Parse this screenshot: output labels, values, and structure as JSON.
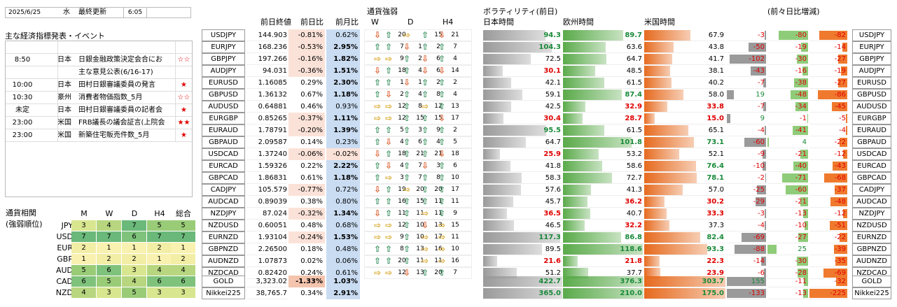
{
  "header": {
    "date": "2025/6/25",
    "weekday": "水",
    "update_label": "最終更新",
    "time": "6:05"
  },
  "events": {
    "title": "主な経済指標発表・イベント",
    "rows": [
      {
        "time": "",
        "ccy": "",
        "text": "",
        "stars": ""
      },
      {
        "time": "8:50",
        "ccy": "日本",
        "text": "日銀金融政策決定会合にお",
        "stars": "☆☆"
      },
      {
        "time": "",
        "ccy": "",
        "text": "主な意見公表(6/16-17)",
        "stars": ""
      },
      {
        "time": "10:00",
        "ccy": "日本",
        "text": "田村日銀審議委員の発言",
        "stars": "★"
      },
      {
        "time": "10:30",
        "ccy": "豪州",
        "text": "消費者物価指数_5月",
        "stars": "☆☆"
      },
      {
        "time": "未定",
        "ccy": "日本",
        "text": "田村日銀審議委員の記者会",
        "stars": "★"
      },
      {
        "time": "23:00",
        "ccy": "米国",
        "text": "FRB議長の議会証言(上院会",
        "stars": "★★"
      },
      {
        "time": "23:00",
        "ccy": "米国",
        "text": "新築住宅販売件数_5月",
        "stars": "★"
      }
    ]
  },
  "correlation": {
    "title1": "通貨相関",
    "title2": "(強弱順位)",
    "cols": [
      "M",
      "W",
      "D",
      "H4",
      "総合"
    ],
    "rows": [
      {
        "ccy": "JPY",
        "vals": [
          3,
          4,
          7,
          5,
          5
        ]
      },
      {
        "ccy": "USD",
        "vals": [
          7,
          7,
          6,
          7,
          7
        ]
      },
      {
        "ccy": "EUR",
        "vals": [
          2,
          1,
          1,
          2,
          1
        ]
      },
      {
        "ccy": "GBP",
        "vals": [
          1,
          2,
          2,
          1,
          2
        ]
      },
      {
        "ccy": "AUD",
        "vals": [
          5,
          6,
          3,
          4,
          4
        ]
      },
      {
        "ccy": "CAD",
        "vals": [
          6,
          5,
          4,
          6,
          6
        ]
      },
      {
        "ccy": "NZD",
        "vals": [
          4,
          3,
          5,
          3,
          3
        ]
      }
    ]
  },
  "quotes": {
    "h_close": "前日終値",
    "h_dchg": "前日比",
    "h_mchg": "前月比",
    "rows": [
      {
        "pair": "USDJPY",
        "close": "144.903",
        "d": "-0.81%",
        "m": "0.62%"
      },
      {
        "pair": "EURJPY",
        "close": "168.236",
        "d": "-0.53%",
        "m": "2.95%"
      },
      {
        "pair": "GBPJPY",
        "close": "197.266",
        "d": "-0.16%",
        "m": "1.82%"
      },
      {
        "pair": "AUDJPY",
        "close": "94.031",
        "d": "-0.36%",
        "m": "1.51%"
      },
      {
        "pair": "EURUSD",
        "close": "1.16085",
        "d": "0.29%",
        "m": "2.30%"
      },
      {
        "pair": "GBPUSD",
        "close": "1.36132",
        "d": "0.67%",
        "m": "1.18%"
      },
      {
        "pair": "AUDUSD",
        "close": "0.64881",
        "d": "0.46%",
        "m": "0.93%"
      },
      {
        "pair": "EURGBP",
        "close": "0.85265",
        "d": "-0.37%",
        "m": "1.11%"
      },
      {
        "pair": "EURAUD",
        "close": "1.78791",
        "d": "-0.20%",
        "m": "1.39%"
      },
      {
        "pair": "GBPAUD",
        "close": "2.09587",
        "d": "0.14%",
        "m": "0.23%"
      },
      {
        "pair": "USDCAD",
        "close": "1.37240",
        "d": "-0.06%",
        "m": "-0.02%"
      },
      {
        "pair": "EURCAD",
        "close": "1.59326",
        "d": "0.22%",
        "m": "2.22%"
      },
      {
        "pair": "GBPCAD",
        "close": "1.86831",
        "d": "0.61%",
        "m": "1.18%"
      },
      {
        "pair": "CADJPY",
        "close": "105.579",
        "d": "-0.77%",
        "m": "0.72%"
      },
      {
        "pair": "AUDCAD",
        "close": "0.89039",
        "d": "0.38%",
        "m": "0.80%"
      },
      {
        "pair": "NZDJPY",
        "close": "87.024",
        "d": "-0.32%",
        "m": "1.34%"
      },
      {
        "pair": "NZDUSD",
        "close": "0.60051",
        "d": "0.48%",
        "m": "0.68%"
      },
      {
        "pair": "EURNZD",
        "close": "1.93104",
        "d": "-0.24%",
        "m": "1.53%"
      },
      {
        "pair": "GBPNZD",
        "close": "2.26500",
        "d": "0.18%",
        "m": "0.48%"
      },
      {
        "pair": "AUDNZD",
        "close": "1.07873",
        "d": "0.02%",
        "m": "0.06%"
      },
      {
        "pair": "NZDCAD",
        "close": "0.82420",
        "d": "0.24%",
        "m": "0.61%"
      }
    ],
    "extra": [
      {
        "pair": "GOLD",
        "close": "3,323.02",
        "d": "-1.33%",
        "m": "1.03%"
      },
      {
        "pair": "Nikkei225",
        "close": "38,765.7",
        "d": "0.34%",
        "m": "2.91%"
      }
    ]
  },
  "strength": {
    "title": "通貨強弱",
    "cols": [
      "W",
      "D",
      "H4"
    ],
    "rows": [
      [
        [
          "dn",
          ""
        ],
        [
          "up",
          "20"
        ],
        [
          "fl",
          ""
        ],
        [
          "up",
          "15"
        ],
        [
          "dn",
          "21"
        ]
      ],
      [
        [
          "up",
          ""
        ],
        [
          "up",
          "7"
        ],
        [
          "dn",
          "1"
        ],
        [
          "up",
          "2"
        ],
        [
          "up",
          "7"
        ]
      ],
      [
        [
          "fl",
          ""
        ],
        [
          "fl",
          "9"
        ],
        [
          "up",
          "2"
        ],
        [
          "dn",
          "6"
        ],
        [
          "up",
          "4"
        ]
      ],
      [
        [
          "dn",
          ""
        ],
        [
          "up",
          "18"
        ],
        [
          "up",
          "4"
        ],
        [
          "dn",
          "6"
        ],
        [
          "dn",
          "14"
        ]
      ],
      [
        [
          "up",
          ""
        ],
        [
          "up",
          "1"
        ],
        [
          "dn",
          "1"
        ],
        [
          "up",
          "2"
        ],
        [
          "up",
          "2"
        ]
      ],
      [
        [
          "up",
          ""
        ],
        [
          "dn",
          "2"
        ],
        [
          "up",
          "4"
        ],
        [
          "up",
          "8"
        ],
        [
          "up",
          "4"
        ]
      ],
      [
        [
          "fl",
          ""
        ],
        [
          "fl",
          "12"
        ],
        [
          "up",
          "8"
        ],
        [
          "fl",
          "12"
        ],
        [
          "up",
          "13"
        ]
      ],
      [
        [
          "fl",
          ""
        ],
        [
          "fl",
          "12"
        ],
        [
          "up",
          "15"
        ],
        [
          "up",
          "15"
        ],
        [
          "dn",
          "17"
        ]
      ],
      [
        [
          "up",
          ""
        ],
        [
          "up",
          "5"
        ],
        [
          "up",
          "3"
        ],
        [
          "up",
          "9"
        ],
        [
          "up",
          "2"
        ]
      ],
      [
        [
          "up",
          ""
        ],
        [
          "dn",
          "4"
        ],
        [
          "up",
          "6"
        ],
        [
          "up",
          "4"
        ],
        [
          "up",
          "5"
        ]
      ],
      [
        [
          "dn",
          ""
        ],
        [
          "up",
          "18"
        ],
        [
          "up",
          "21"
        ],
        [
          "up",
          "21"
        ],
        [
          "dn",
          "18"
        ]
      ],
      [
        [
          "up",
          ""
        ],
        [
          "dn",
          "4"
        ],
        [
          "up",
          "7"
        ],
        [
          "dn",
          "3"
        ],
        [
          "up",
          "6"
        ]
      ],
      [
        [
          "up",
          ""
        ],
        [
          "fl",
          "3"
        ],
        [
          "up",
          "7"
        ],
        [
          "up",
          "8"
        ],
        [
          "up",
          "10"
        ]
      ],
      [
        [
          "dn",
          ""
        ],
        [
          "up",
          "19"
        ],
        [
          "fl",
          "20"
        ],
        [
          "up",
          "20"
        ],
        [
          "up",
          "17"
        ]
      ],
      [
        [
          "up",
          ""
        ],
        [
          "up",
          "16"
        ],
        [
          "up",
          "15"
        ],
        [
          "up",
          "11"
        ],
        [
          "up",
          "11"
        ]
      ],
      [
        [
          "dn",
          ""
        ],
        [
          "up",
          "11"
        ],
        [
          "up",
          "11"
        ],
        [
          "fl",
          "11"
        ],
        [
          "up",
          "9"
        ]
      ],
      [
        [
          "fl",
          ""
        ],
        [
          "fl",
          "12"
        ],
        [
          "up",
          "10"
        ],
        [
          "dn",
          "13"
        ],
        [
          "fl",
          "15"
        ]
      ],
      [
        [
          "fl",
          ""
        ],
        [
          "fl",
          "9"
        ],
        [
          "up",
          "10"
        ],
        [
          "fl",
          "17"
        ],
        [
          "fl",
          "11"
        ]
      ],
      [
        [
          "up",
          ""
        ],
        [
          "up",
          "8"
        ],
        [
          "up",
          "13"
        ],
        [
          "fl",
          "16"
        ],
        [
          "fl",
          "10"
        ]
      ],
      [
        [
          "up",
          ""
        ],
        [
          "up",
          "20"
        ],
        [
          "up",
          "11"
        ],
        [
          "fl",
          "11"
        ],
        [
          "fl",
          "16"
        ]
      ],
      [
        [
          "fl",
          ""
        ],
        [
          "fl",
          "12"
        ],
        [
          "dn",
          "13"
        ],
        [
          "up",
          "20"
        ],
        [
          "up",
          "7"
        ]
      ]
    ]
  },
  "volatility": {
    "title": "ボラティリティ(前日)",
    "h_jp": "日本時間",
    "h_eu": "欧州時間",
    "h_us": "米国時間",
    "h_chg": "(前々日比増減)",
    "rows": [
      {
        "jp": "94.3",
        "eu": "89.7",
        "us": "67.9",
        "cj": "-3",
        "ce": "-80",
        "cu": "-82"
      },
      {
        "jp": "104.3",
        "eu": "63.6",
        "us": "43.8",
        "cj": "-50",
        "ce": "-19",
        "cu": "-14"
      },
      {
        "jp": "72.5",
        "eu": "64.7",
        "us": "41.7",
        "cj": "-102",
        "ce": "-30",
        "cu": "-27"
      },
      {
        "jp": "30.1",
        "eu": "48.5",
        "us": "38.1",
        "cj": "-43",
        "ce": "-16",
        "cu": "-19"
      },
      {
        "jp": "42.1",
        "eu": "61.5",
        "us": "40.2",
        "cj": "-7",
        "ce": "-38",
        "cu": "-27"
      },
      {
        "jp": "59.1",
        "eu": "87.4",
        "us": "58.0",
        "cj": "19",
        "ce": "-48",
        "cu": "-86"
      },
      {
        "jp": "42.5",
        "eu": "32.9",
        "us": "33.8",
        "cj": "-7",
        "ce": "-34",
        "cu": "-45"
      },
      {
        "jp": "30.4",
        "eu": "28.7",
        "us": "15.0",
        "cj": "9",
        "ce": "-1",
        "cu": "-5"
      },
      {
        "jp": "95.5",
        "eu": "61.5",
        "us": "65.1",
        "cj": "-4",
        "ce": "-41",
        "cu": "-4"
      },
      {
        "jp": "64.7",
        "eu": "101.8",
        "us": "73.1",
        "cj": "-60",
        "ce": "4",
        "cu": "-22"
      },
      {
        "jp": "25.9",
        "eu": "53.2",
        "us": "52.1",
        "cj": "-9",
        "ce": "-21",
        "cu": "-12"
      },
      {
        "jp": "41.8",
        "eu": "58.6",
        "us": "76.4",
        "cj": "-10",
        "ce": "-40",
        "cu": "-43"
      },
      {
        "jp": "58.3",
        "eu": "72.7",
        "us": "78.1",
        "cj": "-2",
        "ce": "-71",
        "cu": "-68"
      },
      {
        "jp": "57.6",
        "eu": "41.3",
        "us": "57.0",
        "cj": "-25",
        "ce": "-60",
        "cu": "-37"
      },
      {
        "jp": "45.7",
        "eu": "36.2",
        "us": "30.2",
        "cj": "-29",
        "ce": "-21",
        "cu": "-48"
      },
      {
        "jp": "36.5",
        "eu": "40.7",
        "us": "33.3",
        "cj": "-3",
        "ce": "-13",
        "cu": "-12"
      },
      {
        "jp": "46.5",
        "eu": "32.2",
        "us": "37.3",
        "cj": "-4",
        "ce": "-10",
        "cu": "-51"
      },
      {
        "jp": "117.3",
        "eu": "86.8",
        "us": "82.4",
        "cj": "-69",
        "ce": "-27",
        "cu": "-22"
      },
      {
        "jp": "89.5",
        "eu": "118.6",
        "us": "93.3",
        "cj": "-88",
        "ce": "25",
        "cu": "-39"
      },
      {
        "jp": "21.6",
        "eu": "21.8",
        "us": "22.3",
        "cj": "-14",
        "ce": "-30",
        "cu": "-35"
      },
      {
        "jp": "51.2",
        "eu": "37.7",
        "us": "23.9",
        "cj": "-6",
        "ce": "-28",
        "cu": "-69"
      }
    ],
    "extra": [
      {
        "jp": "422.7",
        "eu": "376.3",
        "us": "303.7",
        "cj": "155",
        "ce": "-11",
        "cu": "-32"
      },
      {
        "jp": "365.0",
        "eu": "210.0",
        "us": "175.0",
        "cj": "-133",
        "ce": "-13",
        "cu": "-225"
      }
    ]
  }
}
